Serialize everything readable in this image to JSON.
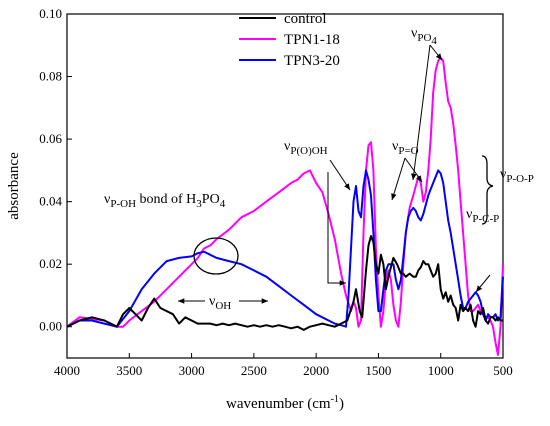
{
  "chart_data": {
    "type": "line",
    "xlabel": "wavenumber (cm",
    "xlabel_sup": "-1",
    "xlabel_end": ")",
    "ylabel": "absorbance",
    "xlim": [
      4000,
      500
    ],
    "ylim": [
      -0.01,
      0.1
    ],
    "xticks": [
      4000,
      3500,
      3000,
      2500,
      2000,
      1500,
      1000,
      500
    ],
    "xtick_labels": [
      "4000",
      "3500",
      "3000",
      "2500",
      "2000",
      "1500",
      "1000",
      "500"
    ],
    "yticks": [
      0.0,
      0.02,
      0.04,
      0.06,
      0.08,
      0.1
    ],
    "ytick_labels": [
      "0.00",
      "0.02",
      "0.04",
      "0.06",
      "0.08",
      "0.10"
    ],
    "grid": false,
    "legend_position": "top-center",
    "series": [
      {
        "name": "control",
        "color": "#000000",
        "x": [
          4000,
          3900,
          3800,
          3700,
          3600,
          3550,
          3500,
          3450,
          3400,
          3350,
          3300,
          3250,
          3200,
          3150,
          3100,
          3050,
          3000,
          2950,
          2900,
          2850,
          2800,
          2750,
          2700,
          2650,
          2600,
          2550,
          2500,
          2450,
          2400,
          2350,
          2300,
          2250,
          2200,
          2150,
          2100,
          2050,
          2000,
          1950,
          1900,
          1850,
          1800,
          1750,
          1700,
          1680,
          1650,
          1630,
          1600,
          1580,
          1560,
          1540,
          1520,
          1500,
          1480,
          1460,
          1440,
          1420,
          1400,
          1380,
          1350,
          1320,
          1300,
          1280,
          1250,
          1220,
          1200,
          1180,
          1160,
          1140,
          1120,
          1100,
          1080,
          1060,
          1040,
          1020,
          1000,
          980,
          960,
          940,
          920,
          900,
          880,
          860,
          840,
          820,
          800,
          780,
          760,
          740,
          720,
          700,
          680,
          660,
          640,
          620,
          600,
          580,
          560,
          540,
          520,
          500
        ],
        "y": [
          0.0,
          0.002,
          0.003,
          0.002,
          0.0,
          0.004,
          0.006,
          0.004,
          0.002,
          0.006,
          0.009,
          0.006,
          0.005,
          0.004,
          0.001,
          0.003,
          0.002,
          0.001,
          0.001,
          0.001,
          0.0005,
          0.001,
          0.0005,
          0.001,
          0.0005,
          0.0,
          0.0005,
          0.0,
          0.0005,
          0.0,
          0.0005,
          0.0,
          -0.0005,
          0.0,
          -0.001,
          0.0,
          0.0005,
          0.001,
          0.0005,
          0.0,
          0.001,
          0.002,
          0.008,
          0.012,
          0.005,
          0.003,
          0.018,
          0.026,
          0.029,
          0.027,
          0.02,
          0.017,
          0.023,
          0.02,
          0.012,
          0.016,
          0.019,
          0.022,
          0.02,
          0.017,
          0.017,
          0.016,
          0.017,
          0.016,
          0.016,
          0.018,
          0.019,
          0.021,
          0.02,
          0.02,
          0.018,
          0.016,
          0.017,
          0.02,
          0.012,
          0.009,
          0.011,
          0.008,
          0.01,
          0.007,
          0.006,
          0.002,
          0.007,
          0.005,
          0.006,
          0.005,
          0.007,
          0.002,
          0.0,
          0.005,
          0.004,
          0.006,
          0.002,
          0.001,
          0.003,
          0.003,
          0.002,
          0.003,
          0.002,
          0.002
        ]
      },
      {
        "name": "TPN1-18",
        "color": "#ff00ff",
        "x": [
          4000,
          3900,
          3800,
          3700,
          3600,
          3550,
          3500,
          3400,
          3300,
          3200,
          3100,
          3000,
          2950,
          2900,
          2850,
          2800,
          2700,
          2600,
          2500,
          2400,
          2300,
          2200,
          2150,
          2100,
          2050,
          2000,
          1950,
          1900,
          1850,
          1800,
          1760,
          1720,
          1700,
          1680,
          1660,
          1640,
          1620,
          1600,
          1580,
          1560,
          1540,
          1520,
          1500,
          1480,
          1460,
          1440,
          1420,
          1400,
          1380,
          1360,
          1340,
          1320,
          1300,
          1280,
          1250,
          1220,
          1200,
          1180,
          1160,
          1140,
          1120,
          1100,
          1080,
          1060,
          1040,
          1020,
          1000,
          980,
          960,
          940,
          920,
          900,
          880,
          860,
          840,
          820,
          800,
          780,
          760,
          740,
          720,
          700,
          680,
          660,
          640,
          620,
          600,
          580,
          560,
          540,
          520,
          500
        ],
        "y": [
          0.0,
          0.003,
          0.0025,
          0.002,
          0.0,
          0.0,
          0.002,
          0.005,
          0.008,
          0.012,
          0.016,
          0.02,
          0.022,
          0.025,
          0.026,
          0.028,
          0.031,
          0.035,
          0.037,
          0.04,
          0.043,
          0.046,
          0.047,
          0.049,
          0.05,
          0.046,
          0.043,
          0.036,
          0.028,
          0.017,
          0.01,
          0.005,
          0.008,
          0.006,
          0.0,
          0.002,
          0.03,
          0.05,
          0.058,
          0.059,
          0.05,
          0.025,
          0.01,
          0.0,
          0.005,
          0.015,
          0.018,
          0.015,
          0.007,
          0.002,
          0.0,
          0.008,
          0.02,
          0.03,
          0.038,
          0.042,
          0.045,
          0.048,
          0.046,
          0.04,
          0.043,
          0.05,
          0.06,
          0.075,
          0.082,
          0.085,
          0.086,
          0.085,
          0.078,
          0.072,
          0.07,
          0.065,
          0.058,
          0.05,
          0.04,
          0.03,
          0.02,
          0.01,
          0.005,
          0.005,
          0.006,
          0.007,
          0.005,
          0.004,
          0.003,
          0.003,
          0.002,
          0.0,
          -0.005,
          -0.009,
          0.0,
          0.02
        ]
      },
      {
        "name": "TPN3-20",
        "color": "#0000ff",
        "x": [
          4000,
          3900,
          3800,
          3700,
          3600,
          3500,
          3400,
          3300,
          3200,
          3100,
          3000,
          2950,
          2900,
          2850,
          2800,
          2700,
          2600,
          2500,
          2400,
          2300,
          2200,
          2100,
          2000,
          1900,
          1850,
          1800,
          1760,
          1740,
          1720,
          1700,
          1680,
          1660,
          1640,
          1620,
          1600,
          1580,
          1560,
          1540,
          1520,
          1500,
          1480,
          1460,
          1440,
          1420,
          1400,
          1380,
          1360,
          1340,
          1320,
          1300,
          1280,
          1260,
          1240,
          1220,
          1200,
          1180,
          1160,
          1140,
          1120,
          1100,
          1080,
          1060,
          1040,
          1020,
          1000,
          980,
          960,
          940,
          920,
          900,
          880,
          860,
          840,
          820,
          800,
          780,
          760,
          740,
          720,
          700,
          680,
          660,
          640,
          620,
          600,
          580,
          560,
          540,
          520,
          500
        ],
        "y": [
          0.0,
          0.002,
          0.002,
          0.001,
          0.0,
          0.005,
          0.012,
          0.017,
          0.021,
          0.022,
          0.0225,
          0.0235,
          0.024,
          0.023,
          0.022,
          0.021,
          0.02,
          0.018,
          0.016,
          0.013,
          0.01,
          0.007,
          0.004,
          0.002,
          0.001,
          0.0005,
          0.0,
          0.01,
          0.025,
          0.04,
          0.045,
          0.037,
          0.035,
          0.045,
          0.05,
          0.047,
          0.042,
          0.03,
          0.015,
          0.005,
          0.005,
          0.012,
          0.018,
          0.02,
          0.02,
          0.02,
          0.015,
          0.012,
          0.015,
          0.022,
          0.03,
          0.035,
          0.037,
          0.038,
          0.037,
          0.035,
          0.034,
          0.036,
          0.039,
          0.042,
          0.044,
          0.046,
          0.048,
          0.05,
          0.049,
          0.046,
          0.04,
          0.034,
          0.03,
          0.025,
          0.02,
          0.015,
          0.01,
          0.006,
          0.006,
          0.008,
          0.009,
          0.01,
          0.011,
          0.01,
          0.008,
          0.004,
          0.002,
          0.004,
          0.003,
          0.003,
          0.004,
          0.002,
          0.003,
          0.016
        ]
      }
    ],
    "annotations": [
      {
        "id": "pcp",
        "parts": [
          [
            "ν",
            "n"
          ],
          [
            "P-C-P",
            "sub"
          ]
        ]
      },
      {
        "id": "pop",
        "parts": [
          [
            "ν",
            "n"
          ],
          [
            "P-O-P",
            "sub"
          ]
        ]
      },
      {
        "id": "po4",
        "parts": [
          [
            "ν",
            "n"
          ],
          [
            "PO",
            "sub"
          ],
          [
            "4",
            "sub2"
          ]
        ]
      },
      {
        "id": "po",
        "parts": [
          [
            "ν",
            "n"
          ],
          [
            "P=O",
            "sub"
          ]
        ]
      },
      {
        "id": "poooh",
        "parts": [
          [
            "ν",
            "n"
          ],
          [
            "P(O)OH",
            "sub"
          ]
        ]
      },
      {
        "id": "poh",
        "parts": [
          [
            "ν",
            "n"
          ],
          [
            "P-OH",
            "sub"
          ],
          [
            " bond of H",
            "n"
          ],
          [
            "3",
            "sub"
          ],
          [
            "PO",
            "n"
          ],
          [
            "4",
            "sub"
          ]
        ]
      },
      {
        "id": "oh",
        "parts": [
          [
            "ν",
            "n"
          ],
          [
            "OH",
            "sub"
          ]
        ]
      }
    ]
  }
}
